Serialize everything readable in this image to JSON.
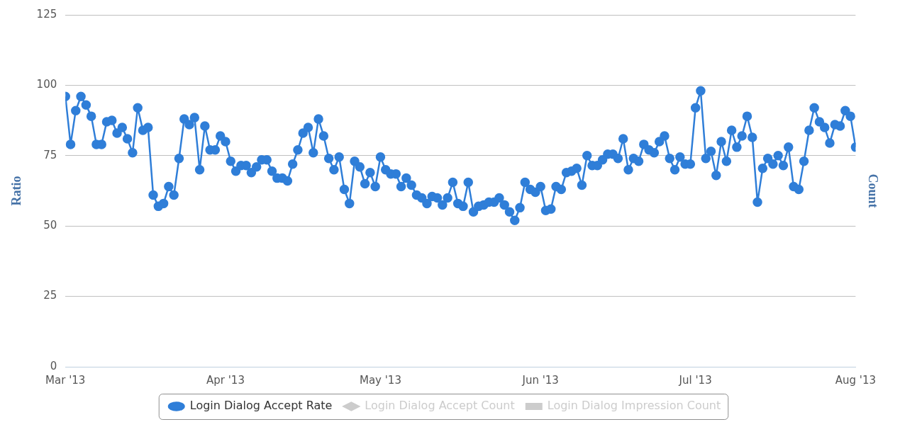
{
  "chart_data": {
    "type": "line",
    "ylabel": "Ratio",
    "y2label": "Count",
    "x": [
      "2013-03-01",
      "2013-03-02",
      "2013-03-03",
      "2013-03-04",
      "2013-03-05",
      "2013-03-06",
      "2013-03-07",
      "2013-03-08",
      "2013-03-09",
      "2013-03-10",
      "2013-03-11",
      "2013-03-12",
      "2013-03-13",
      "2013-03-14",
      "2013-03-15",
      "2013-03-16",
      "2013-03-17",
      "2013-03-18",
      "2013-03-19",
      "2013-03-20",
      "2013-03-21",
      "2013-03-22",
      "2013-03-23",
      "2013-03-24",
      "2013-03-25",
      "2013-03-26",
      "2013-03-27",
      "2013-03-28",
      "2013-03-29",
      "2013-03-30",
      "2013-03-31",
      "2013-04-01",
      "2013-04-02",
      "2013-04-03",
      "2013-04-04",
      "2013-04-05",
      "2013-04-06",
      "2013-04-07",
      "2013-04-08",
      "2013-04-09",
      "2013-04-10",
      "2013-04-11",
      "2013-04-12",
      "2013-04-13",
      "2013-04-14",
      "2013-04-15",
      "2013-04-16",
      "2013-04-17",
      "2013-04-18",
      "2013-04-19",
      "2013-04-20",
      "2013-04-21",
      "2013-04-22",
      "2013-04-23",
      "2013-04-24",
      "2013-04-25",
      "2013-04-26",
      "2013-04-27",
      "2013-04-28",
      "2013-04-29",
      "2013-04-30",
      "2013-05-01",
      "2013-05-02",
      "2013-05-03",
      "2013-05-04",
      "2013-05-05",
      "2013-05-06",
      "2013-05-07",
      "2013-05-08",
      "2013-05-09",
      "2013-05-10",
      "2013-05-11",
      "2013-05-12",
      "2013-05-13",
      "2013-05-14",
      "2013-05-15",
      "2013-05-16",
      "2013-05-17",
      "2013-05-18",
      "2013-05-19",
      "2013-05-20",
      "2013-05-21",
      "2013-05-22",
      "2013-05-23",
      "2013-05-24",
      "2013-05-25",
      "2013-05-26",
      "2013-05-27",
      "2013-05-28",
      "2013-05-29",
      "2013-05-30",
      "2013-05-31",
      "2013-06-01",
      "2013-06-02",
      "2013-06-03",
      "2013-06-04",
      "2013-06-05",
      "2013-06-06",
      "2013-06-07",
      "2013-06-08",
      "2013-06-09",
      "2013-06-10",
      "2013-06-11",
      "2013-06-12",
      "2013-06-13",
      "2013-06-14",
      "2013-06-15",
      "2013-06-16",
      "2013-06-17",
      "2013-06-18",
      "2013-06-19",
      "2013-06-20",
      "2013-06-21",
      "2013-06-22",
      "2013-06-23",
      "2013-06-24",
      "2013-06-25",
      "2013-06-26",
      "2013-06-27",
      "2013-06-28",
      "2013-06-29",
      "2013-06-30",
      "2013-07-01",
      "2013-07-02",
      "2013-07-03",
      "2013-07-04",
      "2013-07-05",
      "2013-07-06",
      "2013-07-07",
      "2013-07-08",
      "2013-07-09",
      "2013-07-10",
      "2013-07-11",
      "2013-07-12",
      "2013-07-13",
      "2013-07-14",
      "2013-07-15",
      "2013-07-16",
      "2013-07-17",
      "2013-07-18",
      "2013-07-19",
      "2013-07-20",
      "2013-07-21",
      "2013-07-22",
      "2013-07-23",
      "2013-07-24",
      "2013-07-25",
      "2013-07-26",
      "2013-07-27",
      "2013-07-28",
      "2013-07-29",
      "2013-07-30",
      "2013-07-31",
      "2013-08-01"
    ],
    "series": [
      {
        "name": "Login Dialog Accept Rate",
        "color": "#2f7ed8",
        "marker": "circle",
        "values": [
          96,
          79,
          91,
          96,
          93,
          89,
          79,
          79,
          87,
          87.5,
          83,
          85,
          81,
          76,
          92,
          84,
          85,
          61,
          57,
          58,
          64,
          61,
          74,
          88,
          86,
          88.5,
          70,
          85.5,
          77,
          77,
          82,
          80,
          73,
          69.5,
          71.5,
          71.5,
          69,
          71,
          73.5,
          73.5,
          69.5,
          67,
          67,
          66,
          72,
          77,
          83,
          85,
          76,
          88,
          82,
          74,
          70,
          74.5,
          63,
          58,
          73,
          71,
          65,
          69,
          64,
          74.5,
          70,
          68.5,
          68.5,
          64,
          67,
          64.5,
          61,
          60,
          58,
          60.5,
          60,
          57.5,
          60,
          65.5,
          58,
          57,
          65.5,
          55,
          57,
          57.5,
          58.5,
          58.5,
          60,
          57.5,
          55,
          52,
          56.5,
          65.5,
          63,
          62,
          64,
          55.5,
          56,
          64,
          63,
          69,
          69.5,
          70.5,
          64.5,
          75,
          71.5,
          71.5,
          73.5,
          75.5,
          75.5,
          74,
          81,
          70,
          74,
          73,
          79,
          77,
          76,
          80,
          82,
          74,
          70,
          74.5,
          72,
          72,
          92,
          98,
          74,
          76.5,
          68,
          80,
          73,
          84,
          78,
          82,
          89,
          81.5,
          58.5,
          70.5,
          74,
          72,
          75,
          71.5,
          78,
          64,
          63,
          73,
          84,
          92,
          87,
          85,
          79.5,
          86,
          85.5,
          91,
          89,
          78
        ]
      },
      {
        "name": "Login Dialog Accept Count",
        "color": "#cccccc",
        "marker": "diamond",
        "values": [
          null,
          null,
          null,
          null,
          null,
          null,
          null,
          null,
          null,
          null,
          null,
          null,
          null,
          null,
          null,
          null,
          null,
          null,
          null,
          null,
          null,
          null,
          null,
          null,
          null,
          null,
          null,
          null,
          null,
          null,
          null,
          null,
          null,
          null,
          null,
          null,
          null,
          null,
          null,
          null,
          null,
          null,
          null,
          null,
          null,
          null,
          null,
          null,
          null,
          null,
          null,
          null,
          null,
          null,
          null,
          null,
          null,
          null,
          null,
          null,
          null,
          null,
          null,
          null,
          null,
          null,
          null,
          null,
          null,
          null,
          null,
          null,
          null,
          null,
          null,
          null,
          null,
          null,
          null,
          null,
          null,
          null,
          null,
          null,
          null,
          null,
          null,
          null,
          null,
          null,
          null,
          null,
          null,
          null,
          null,
          null,
          null,
          null,
          null,
          null,
          null,
          null,
          null,
          null,
          null,
          null,
          null,
          null,
          null,
          null,
          null,
          null,
          null,
          null,
          null,
          null,
          null,
          null,
          null,
          null,
          null,
          null,
          null,
          null,
          null,
          null,
          null,
          null,
          null,
          null,
          null,
          null,
          null,
          null,
          null,
          null,
          null,
          null,
          null,
          null,
          null,
          null,
          null,
          null,
          null,
          null,
          null,
          null,
          null,
          null,
          null,
          null,
          null,
          null
        ]
      },
      {
        "name": "Login Dialog Impression Count",
        "color": "#cccccc",
        "marker": "square",
        "values": [
          null,
          null,
          null,
          null,
          null,
          null,
          null,
          null,
          null,
          null,
          null,
          null,
          null,
          null,
          null,
          null,
          null,
          null,
          null,
          null,
          null,
          null,
          null,
          null,
          null,
          null,
          null,
          null,
          null,
          null,
          null,
          null,
          null,
          null,
          null,
          null,
          null,
          null,
          null,
          null,
          null,
          null,
          null,
          null,
          null,
          null,
          null,
          null,
          null,
          null,
          null,
          null,
          null,
          null,
          null,
          null,
          null,
          null,
          null,
          null,
          null,
          null,
          null,
          null,
          null,
          null,
          null,
          null,
          null,
          null,
          null,
          null,
          null,
          null,
          null,
          null,
          null,
          null,
          null,
          null,
          null,
          null,
          null,
          null,
          null,
          null,
          null,
          null,
          null,
          null,
          null,
          null,
          null,
          null,
          null,
          null,
          null,
          null,
          null,
          null,
          null,
          null,
          null,
          null,
          null,
          null,
          null,
          null,
          null,
          null,
          null,
          null,
          null,
          null,
          null,
          null,
          null,
          null,
          null,
          null,
          null,
          null,
          null,
          null,
          null,
          null,
          null,
          null,
          null,
          null,
          null,
          null,
          null,
          null,
          null,
          null,
          null,
          null,
          null,
          null,
          null,
          null,
          null,
          null,
          null,
          null,
          null,
          null,
          null,
          null,
          null,
          null,
          null,
          null
        ]
      }
    ],
    "xlim": [
      "2013-03-01",
      "2013-08-01"
    ],
    "xticks": [
      {
        "value": "2013-03-01",
        "label": "Mar '13"
      },
      {
        "value": "2013-04-01",
        "label": "Apr '13"
      },
      {
        "value": "2013-05-01",
        "label": "May '13"
      },
      {
        "value": "2013-06-01",
        "label": "Jun '13"
      },
      {
        "value": "2013-07-01",
        "label": "Jul '13"
      },
      {
        "value": "2013-08-01",
        "label": "Aug '13"
      }
    ],
    "ylim": [
      0,
      125
    ],
    "yticks": [
      0,
      25,
      50,
      75,
      100,
      125
    ],
    "grid": "y",
    "legend": "bottom",
    "line_style": "solid"
  }
}
